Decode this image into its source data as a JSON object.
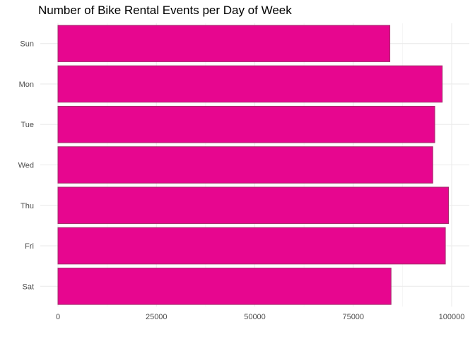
{
  "chart_data": {
    "type": "bar",
    "orientation": "horizontal",
    "title": "Number of Bike Rental Events per Day of Week",
    "xlabel": "",
    "ylabel": "",
    "categories": [
      "Sun",
      "Mon",
      "Tue",
      "Wed",
      "Thu",
      "Fri",
      "Sat"
    ],
    "values": [
      84300,
      97600,
      95700,
      95200,
      99200,
      98400,
      84600
    ],
    "xlim": [
      0,
      103000
    ],
    "xticks": [
      0,
      25000,
      50000,
      75000,
      100000
    ],
    "xtick_labels": [
      "0",
      "25000",
      "50000",
      "75000",
      "100000"
    ],
    "grid": true,
    "legend": "none",
    "colors": {
      "bar_fill": "#e7068f",
      "bar_stroke": "#a0306a",
      "grid": "#ebebeb",
      "background": "#ffffff"
    }
  }
}
